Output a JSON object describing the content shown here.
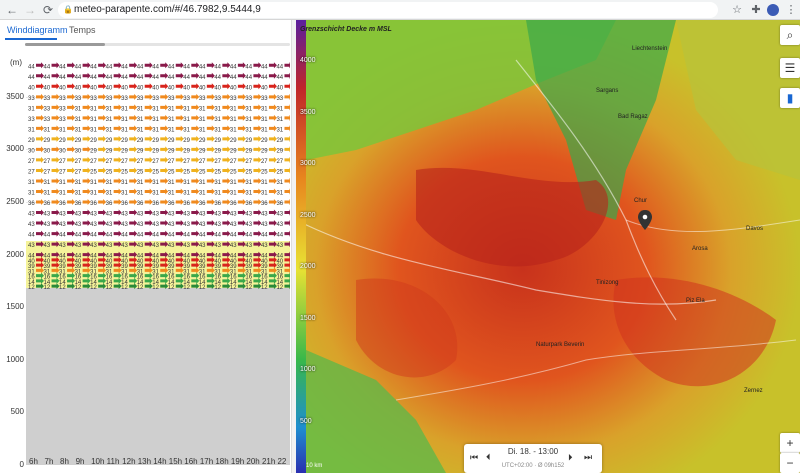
{
  "browser": {
    "url": "meteo-parapente.com/#/46.7982,9.5444,9",
    "icons": [
      "back-icon",
      "forward-icon",
      "reload-icon",
      "lock-icon",
      "star-icon",
      "extension-icon",
      "avatar",
      "menu-icon"
    ]
  },
  "tabs": [
    {
      "label": "Winddiagramm",
      "active": true
    },
    {
      "label": "Temps",
      "active": false
    }
  ],
  "chart_data": {
    "type": "heatmap",
    "ylabel": "(m)",
    "y_ticks": [
      0,
      500,
      1000,
      1500,
      2000,
      2500,
      3000,
      3500
    ],
    "ylim": [
      0,
      3850
    ],
    "x_ticks": [
      "6h",
      "7h",
      "8h",
      "9h",
      "10h",
      "11h",
      "12h",
      "13h",
      "14h",
      "15h",
      "16h",
      "17h",
      "18h",
      "19h",
      "20h",
      "21h",
      "22"
    ],
    "ground_level_m": 1680,
    "convective_layer_top_m": 2130,
    "row_altitudes_m": [
      3800,
      3700,
      3600,
      3500,
      3400,
      3300,
      3200,
      3100,
      3000,
      2900,
      2800,
      2700,
      2600,
      2500,
      2400,
      2300,
      2200,
      2100,
      2000,
      1950,
      1900,
      1850,
      1800,
      1750,
      1700
    ],
    "wind_speeds_kmh": [
      [
        44,
        44,
        44,
        44,
        44,
        44,
        44,
        44,
        44,
        44,
        44,
        44,
        44,
        44,
        44,
        44,
        44
      ],
      [
        44,
        44,
        44,
        44,
        44,
        44,
        44,
        44,
        44,
        44,
        44,
        44,
        44,
        44,
        44,
        44,
        44
      ],
      [
        40,
        40,
        40,
        40,
        40,
        40,
        40,
        40,
        40,
        40,
        40,
        40,
        40,
        40,
        40,
        40,
        40
      ],
      [
        33,
        33,
        33,
        33,
        33,
        33,
        33,
        33,
        33,
        33,
        33,
        33,
        33,
        33,
        33,
        33,
        33
      ],
      [
        31,
        33,
        33,
        31,
        31,
        31,
        31,
        31,
        31,
        31,
        31,
        31,
        31,
        31,
        31,
        31,
        31
      ],
      [
        33,
        33,
        33,
        31,
        31,
        31,
        31,
        31,
        31,
        31,
        31,
        31,
        31,
        31,
        31,
        31,
        31
      ],
      [
        31,
        31,
        31,
        31,
        31,
        31,
        31,
        31,
        31,
        31,
        31,
        31,
        31,
        31,
        31,
        31,
        31
      ],
      [
        29,
        29,
        29,
        29,
        29,
        29,
        29,
        29,
        29,
        29,
        29,
        29,
        29,
        29,
        29,
        29,
        29
      ],
      [
        30,
        30,
        30,
        30,
        29,
        29,
        29,
        29,
        29,
        29,
        29,
        29,
        29,
        29,
        29,
        29,
        29
      ],
      [
        27,
        27,
        27,
        27,
        27,
        27,
        27,
        27,
        27,
        27,
        27,
        27,
        27,
        27,
        27,
        27,
        27
      ],
      [
        27,
        27,
        27,
        27,
        25,
        25,
        25,
        25,
        25,
        25,
        25,
        25,
        25,
        25,
        25,
        25,
        25
      ],
      [
        31,
        31,
        31,
        31,
        31,
        31,
        31,
        31,
        31,
        31,
        31,
        31,
        31,
        31,
        31,
        31,
        31
      ],
      [
        31,
        31,
        31,
        31,
        31,
        31,
        31,
        31,
        31,
        31,
        31,
        31,
        31,
        31,
        31,
        31,
        31
      ],
      [
        36,
        36,
        36,
        36,
        36,
        36,
        36,
        36,
        36,
        36,
        36,
        36,
        36,
        36,
        36,
        36,
        36
      ],
      [
        43,
        43,
        43,
        43,
        43,
        43,
        43,
        43,
        43,
        43,
        43,
        43,
        43,
        43,
        43,
        43,
        43
      ],
      [
        43,
        43,
        43,
        43,
        43,
        43,
        43,
        43,
        43,
        43,
        43,
        43,
        43,
        43,
        43,
        43,
        43
      ],
      [
        44,
        44,
        44,
        44,
        44,
        44,
        44,
        44,
        44,
        44,
        44,
        44,
        44,
        44,
        44,
        44,
        44
      ],
      [
        43,
        43,
        43,
        43,
        43,
        43,
        43,
        43,
        43,
        43,
        43,
        43,
        43,
        43,
        43,
        43,
        43
      ],
      [
        44,
        44,
        44,
        44,
        44,
        44,
        44,
        44,
        44,
        44,
        44,
        44,
        44,
        44,
        44,
        44,
        44
      ],
      [
        40,
        40,
        40,
        40,
        40,
        40,
        40,
        40,
        40,
        40,
        40,
        40,
        40,
        40,
        40,
        40,
        40
      ],
      [
        39,
        39,
        39,
        39,
        39,
        39,
        39,
        39,
        39,
        39,
        39,
        39,
        39,
        39,
        39,
        39,
        39
      ],
      [
        31,
        31,
        31,
        31,
        31,
        31,
        31,
        31,
        31,
        31,
        31,
        31,
        31,
        31,
        31,
        31,
        31
      ],
      [
        16,
        16,
        16,
        16,
        16,
        16,
        16,
        16,
        16,
        16,
        16,
        16,
        16,
        16,
        16,
        16,
        16
      ],
      [
        14,
        14,
        14,
        14,
        14,
        14,
        14,
        14,
        14,
        14,
        14,
        14,
        14,
        14,
        14,
        14,
        14
      ],
      [
        12,
        12,
        12,
        12,
        12,
        12,
        12,
        12,
        12,
        12,
        12,
        12,
        12,
        12,
        12,
        12,
        12
      ]
    ],
    "grid": true,
    "legend": "none"
  },
  "map": {
    "scale_title": "Grenzschicht Decke m MSL",
    "scale_ticks": [
      4000,
      3500,
      3000,
      2500,
      2000,
      1500,
      1000,
      500
    ],
    "scalebar": "10 km",
    "places": [
      {
        "name": "Liechtenstein"
      },
      {
        "name": "Sargans"
      },
      {
        "name": "Bad Ragaz"
      },
      {
        "name": "Chur"
      },
      {
        "name": "Davos"
      },
      {
        "name": "Arosa"
      },
      {
        "name": "Tinizong"
      },
      {
        "name": "Naturpark Beverin"
      },
      {
        "name": "Piz Ela"
      },
      {
        "name": "Zernez"
      }
    ],
    "player": {
      "time": "Di. 18. - 13:00",
      "sub": "UTC+02:00 · Ø 09h152"
    },
    "zoom_in": "+",
    "zoom_out": "−",
    "side_icons": [
      "search-icon",
      "sliders-icon",
      "chart-icon"
    ]
  },
  "colors": {
    "active_tab": "#1967d2",
    "convective_band": "#f5f39a",
    "ground": "#cfcfcf"
  }
}
